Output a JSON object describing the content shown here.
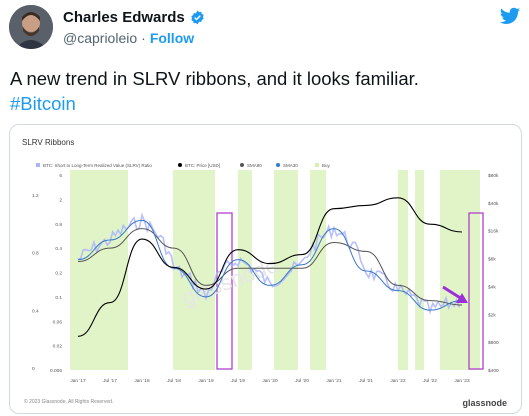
{
  "author": {
    "name": "Charles Edwards",
    "handle": "@caprioleio",
    "separator": "·",
    "follow_label": "Follow",
    "verified_color": "#1d9bf0"
  },
  "tweet": {
    "text": "A new trend in SLRV ribbons, and it looks familiar.",
    "hashtag": "#Bitcoin"
  },
  "chart_card": {
    "title": "SLRV Ribbons",
    "legend": [
      {
        "label": "BTC: Short to Long-Term Realized Value (SLRV) Ratio",
        "color": "#a9b3ff"
      },
      {
        "label": "BTC: Price [USD]",
        "color": "#000000"
      },
      {
        "label": "SMA90",
        "color": "#555555"
      },
      {
        "label": "SMA30",
        "color": "#3a78c8"
      },
      {
        "label": "Buy",
        "color": "#d6f0b2"
      }
    ],
    "watermark": "glassnode",
    "footer_copyright": "© 2023 Glassnode. All Rights Reserved.",
    "footer_brand": "glassnode"
  },
  "chart_data": {
    "type": "line",
    "title": "SLRV Ribbons",
    "x_ticks": [
      "Jan '17",
      "Jul '17",
      "Jan '18",
      "Jul '18",
      "Jan '19",
      "Jul '19",
      "Jan '20",
      "Jul '20",
      "Jan '21",
      "Jul '21",
      "Jan '22",
      "Jul '22",
      "Jan '23"
    ],
    "y_left_outer_ticks": [
      "1.2",
      "0.8",
      "0.4",
      "0"
    ],
    "y_left_inner_ticks": [
      "6",
      "2",
      "0.8",
      "0.4",
      "0.2",
      "0.1",
      "0.06",
      "0.02",
      "0.006"
    ],
    "y_right_ticks": [
      "$80k",
      "$40k",
      "$16k",
      "$8k",
      "$4k",
      "$2k",
      "$800",
      "$400"
    ],
    "series": [
      {
        "name": "BTC: Price [USD]",
        "color": "#000000",
        "x": [
          "Jan '17",
          "Jul '17",
          "Jan '18",
          "Jul '18",
          "Jan '19",
          "Jul '19",
          "Jan '20",
          "Jul '20",
          "Jan '21",
          "Jul '21",
          "Jan '22",
          "Jul '22",
          "Jan '23"
        ],
        "values": [
          1000,
          2500,
          14000,
          6500,
          3600,
          10500,
          7200,
          9200,
          32000,
          35000,
          43000,
          21000,
          17000
        ]
      },
      {
        "name": "SMA90",
        "color": "#555555",
        "x": [
          "Jan '17",
          "Jul '17",
          "Jan '18",
          "Jul '18",
          "Jan '19",
          "Jul '19",
          "Jan '20",
          "Jul '20",
          "Jan '21",
          "Jul '21",
          "Jan '22",
          "Jul '22",
          "Jan '23"
        ],
        "values": [
          0.28,
          0.45,
          0.9,
          0.45,
          0.12,
          0.22,
          0.22,
          0.22,
          0.55,
          0.4,
          0.12,
          0.07,
          0.06
        ]
      },
      {
        "name": "SMA30",
        "color": "#3a78c8",
        "x": [
          "Jan '17",
          "Jul '17",
          "Jan '18",
          "Jul '18",
          "Jan '19",
          "Jul '19",
          "Jan '20",
          "Jul '20",
          "Jan '21",
          "Jul '21",
          "Jan '22",
          "Jul '22",
          "Jan '23"
        ],
        "values": [
          0.3,
          0.6,
          1.2,
          0.22,
          0.08,
          0.3,
          0.12,
          0.25,
          0.9,
          0.2,
          0.1,
          0.05,
          0.07
        ]
      }
    ],
    "highlights": [
      "Jan '19",
      "Jan '23"
    ],
    "annotation": "arrow pointing to latest SMA crossover",
    "grid": false,
    "legend_position": "top"
  }
}
